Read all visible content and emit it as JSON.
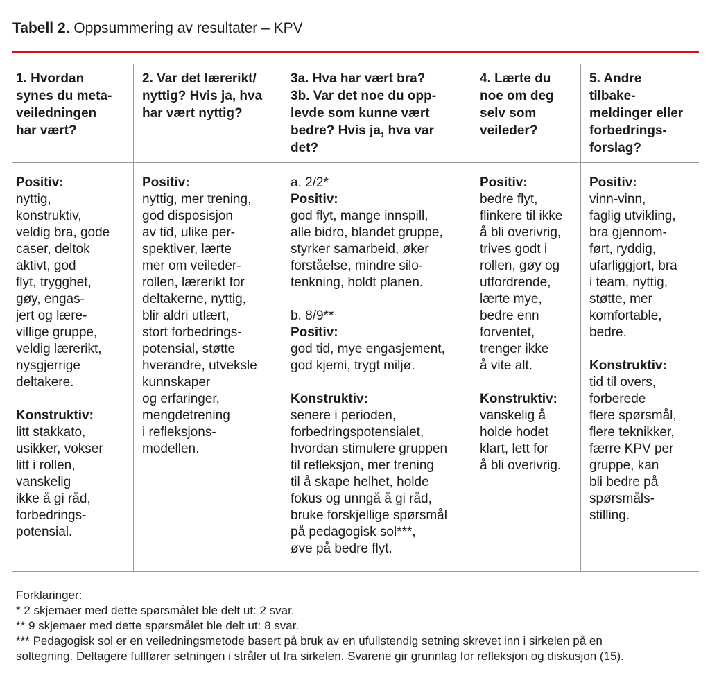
{
  "title": {
    "label": "Tabell 2.",
    "text": "Oppsummering av resultater – KPV"
  },
  "colors": {
    "accent_rule": "#e30b13",
    "text": "#1c1c1c",
    "table_border": "#9a9a9a"
  },
  "table": {
    "columns": [
      {
        "header": "1. Hvordan\nsynes du meta-\nveiledningen\nhar vært?",
        "blocks": [
          {
            "bold": true,
            "text": "Positiv:"
          },
          {
            "bold": false,
            "text": "nyttig,\nkonstruktiv,\nveldig bra, gode\ncaser, deltok\naktivt, god\nflyt, trygghet,\ngøy, engas-\njert og lære-\nvillige gruppe,\nveldig lærerikt,\nnysgjerrige\ndeltakere."
          },
          {
            "gap": true
          },
          {
            "bold": true,
            "text": "Konstruktiv:"
          },
          {
            "bold": false,
            "text": "litt stakkato,\nusikker, vokser\nlitt i rollen,\nvanskelig\nikke å gi råd,\nforbedrings-\npotensial."
          }
        ]
      },
      {
        "header": "2. Var det lærerikt/\nnyttig? Hvis ja, hva\nhar vært nyttig?",
        "blocks": [
          {
            "bold": true,
            "text": "Positiv:"
          },
          {
            "bold": false,
            "text": "nyttig, mer trening,\ngod disposisjon\nav tid, ulike per-\nspektiver, lærte\nmer om veileder-\nrollen, lærerikt for\ndeltakerne, nyttig,\nblir aldri utlært,\nstort forbedrings-\npotensial, støtte\nhverandre, utveksle\nkunnskaper\nog erfaringer,\nmengdetrening\ni refleksjons-\nmodellen."
          }
        ]
      },
      {
        "header": "3a. Hva har vært bra?\n3b. Var det noe du opp-\nlevde som kunne vært\nbedre? Hvis ja, hva var\ndet?",
        "blocks": [
          {
            "bold": false,
            "text": "a. 2/2*"
          },
          {
            "bold": true,
            "text": "Positiv:"
          },
          {
            "bold": false,
            "text": "god flyt, mange innspill,\nalle bidro, blandet gruppe,\nstyrker samarbeid, øker\nforståelse, mindre silo-\ntenkning, holdt planen."
          },
          {
            "gap": true
          },
          {
            "bold": false,
            "text": "b. 8/9**"
          },
          {
            "bold": true,
            "text": "Positiv:"
          },
          {
            "bold": false,
            "text": "god tid, mye engasjement,\ngod kjemi, trygt miljø."
          },
          {
            "gap": true
          },
          {
            "bold": true,
            "text": "Konstruktiv:"
          },
          {
            "bold": false,
            "text": "senere i perioden,\nforbedringspotensialet,\nhvordan stimulere gruppen\ntil refleksjon, mer trening\ntil å skape helhet, holde\nfokus og unngå å gi råd,\nbruke forskjellige spørsmål\npå pedagogisk sol***,\nøve på bedre flyt."
          }
        ]
      },
      {
        "header": "4. Lærte du\nnoe om deg\nselv som\nveileder?",
        "blocks": [
          {
            "bold": true,
            "text": "Positiv:"
          },
          {
            "bold": false,
            "text": "bedre flyt,\nflinkere til ikke\nå bli overivrig,\ntrives godt i\nrollen, gøy og\nutfordrende,\nlærte mye,\nbedre enn\nforventet,\ntrenger ikke\nå vite alt."
          },
          {
            "gap": true
          },
          {
            "bold": true,
            "text": "Konstruktiv:"
          },
          {
            "bold": false,
            "text": "vanskelig å\nholde hodet\nklart, lett for\nå bli overivrig."
          }
        ]
      },
      {
        "header": "5. Andre\ntilbake-\nmeldinger eller\nforbedrings-\nforslag?",
        "blocks": [
          {
            "bold": true,
            "text": "Positiv:"
          },
          {
            "bold": false,
            "text": "vinn-vinn,\nfaglig utvikling,\nbra gjennom-\nført, ryddig,\nufarliggjort, bra\ni team, nyttig,\nstøtte, mer\nkomfortable,\nbedre."
          },
          {
            "gap": true
          },
          {
            "bold": true,
            "text": "Konstruktiv:"
          },
          {
            "bold": false,
            "text": "tid til overs,\nforberede\nflere spørsmål,\nflere teknikker,\nfærre KPV per\ngruppe, kan\nbli bedre på\nspørsmåls-\nstilling."
          }
        ]
      }
    ]
  },
  "footnotes": [
    "Forklaringer:",
    "* 2 skjemaer med dette spørsmålet ble delt ut: 2 svar.",
    "** 9 skjemaer med dette spørsmålet ble delt ut: 8 svar.",
    "*** Pedagogisk sol er en veiledningsmetode basert på bruk av en ufullstendig setning skrevet inn i sirkelen på en",
    "soltegning. Deltagere fullfører setningen i stråler ut fra sirkelen. Svarene gir grunnlag for refleksjon og diskusjon (15)."
  ]
}
